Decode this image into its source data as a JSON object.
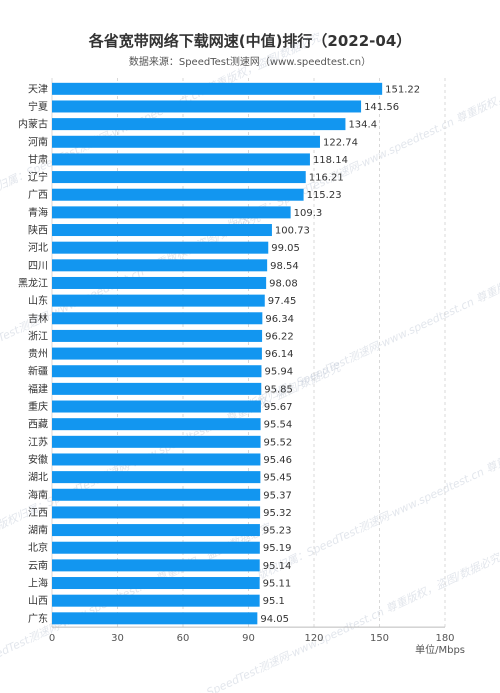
{
  "chart_data": {
    "type": "bar",
    "orientation": "horizontal",
    "title": "各省宽带网络下载网速(中值)排行（2022-04）",
    "subtitle": "数据来源：SpeedTest测速网（www.speedtest.cn）",
    "unit_label": "单位/Mbps",
    "categories": [
      "天津",
      "宁夏",
      "内蒙古",
      "河南",
      "甘肃",
      "辽宁",
      "广西",
      "青海",
      "陕西",
      "河北",
      "四川",
      "黑龙江",
      "山东",
      "吉林",
      "浙江",
      "贵州",
      "新疆",
      "福建",
      "重庆",
      "西藏",
      "江苏",
      "安徽",
      "湖北",
      "海南",
      "江西",
      "湖南",
      "北京",
      "云南",
      "上海",
      "山西",
      "广东"
    ],
    "values": [
      151.22,
      141.56,
      134.4,
      122.74,
      118.14,
      116.21,
      115.23,
      109.3,
      100.73,
      99.05,
      98.54,
      98.08,
      97.45,
      96.34,
      96.22,
      96.14,
      95.94,
      95.85,
      95.67,
      95.54,
      95.52,
      95.46,
      95.45,
      95.37,
      95.32,
      95.23,
      95.19,
      95.14,
      95.11,
      95.1,
      94.05
    ],
    "value_labels": [
      "151.22",
      "141.56",
      "134.4",
      "122.74",
      "118.14",
      "116.21",
      "115.23",
      "109.3",
      "100.73",
      "99.05",
      "98.54",
      "98.08",
      "97.45",
      "96.34",
      "96.22",
      "96.14",
      "95.94",
      "95.85",
      "95.67",
      "95.54",
      "95.52",
      "95.46",
      "95.45",
      "95.37",
      "95.32",
      "95.23",
      "95.19",
      "95.14",
      "95.11",
      "95.1",
      "94.05"
    ],
    "xlim": [
      0,
      180
    ],
    "x_ticks": [
      "0",
      "30",
      "60",
      "90",
      "120",
      "150",
      "180"
    ],
    "grid": "vertical-dashed",
    "bar_color": "#1296f0"
  },
  "watermark": "版权归属：SpeedTest测速网-www.speedtest.cn 尊重版权，盗图/数据必究"
}
